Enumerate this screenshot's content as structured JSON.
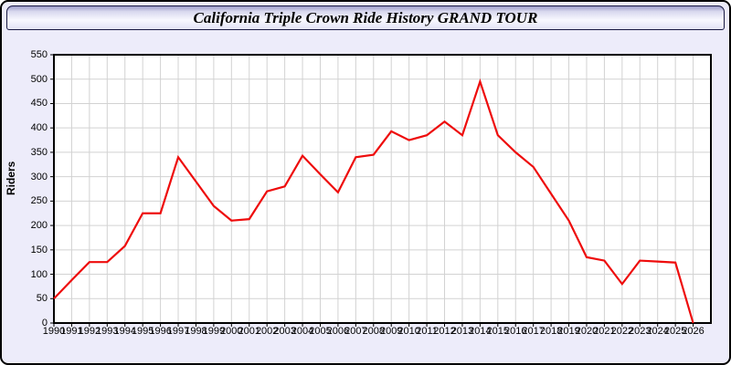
{
  "page": {
    "background": "#EDECFA"
  },
  "header": {
    "title": "California Triple Crown Ride History GRAND TOUR"
  },
  "chart_data": {
    "type": "line",
    "title": "California Triple Crown Ride History GRAND TOUR",
    "xlabel": "",
    "ylabel": "Riders",
    "x": [
      1990,
      1991,
      1992,
      1993,
      1994,
      1995,
      1996,
      1997,
      1998,
      1999,
      2000,
      2001,
      2002,
      2003,
      2004,
      2005,
      2006,
      2007,
      2008,
      2009,
      2010,
      2011,
      2012,
      2013,
      2014,
      2015,
      2016,
      2017,
      2018,
      2019,
      2020,
      2021,
      2022,
      2023,
      2024,
      2025,
      2026
    ],
    "values": [
      50,
      88,
      125,
      125,
      158,
      225,
      225,
      340,
      290,
      240,
      210,
      213,
      270,
      280,
      343,
      305,
      268,
      340,
      345,
      393,
      375,
      385,
      413,
      385,
      495,
      385,
      350,
      320,
      265,
      210,
      135,
      128,
      80,
      128,
      126,
      124,
      0
    ],
    "xlim": [
      1990,
      2027
    ],
    "ylim": [
      0,
      550
    ],
    "ytick_step": 50,
    "grid": true,
    "legend_position": "none",
    "line_color": "#EE0C0C",
    "grid_color": "#D2D2D2",
    "plot_bg": "#FFFFFF",
    "axis_color": "#000000"
  }
}
